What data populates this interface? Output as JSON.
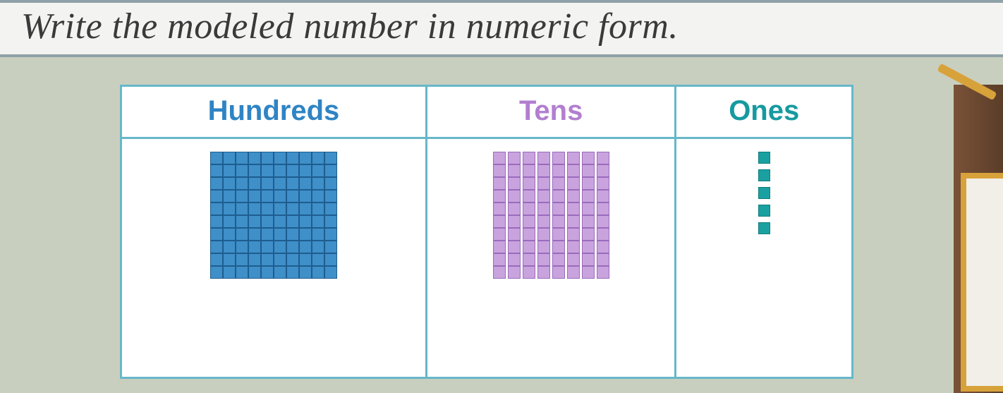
{
  "instruction": {
    "text": "Write the modeled number in numeric form.",
    "fontsize": 52
  },
  "table": {
    "border_color": "#67b7c9",
    "header_fontsize": 40,
    "columns": [
      {
        "key": "hundreds",
        "label": "Hundreds",
        "color": "#2f84c4"
      },
      {
        "key": "tens",
        "label": "Tens",
        "color": "#b27fcf"
      },
      {
        "key": "ones",
        "label": "Ones",
        "color": "#159aa0"
      }
    ]
  },
  "blocks": {
    "hundreds": {
      "count": 1,
      "grid": 10,
      "unit_size": 18,
      "fill": "#3f8fc9",
      "line": "#1e5d8f"
    },
    "tens": {
      "count": 8,
      "units": 10,
      "unit_w": 18,
      "unit_h": 18,
      "gap": 3,
      "fill": "#c9a3dd",
      "line": "#9a6bbd"
    },
    "ones": {
      "count": 5,
      "size": 17,
      "gap": 8,
      "fill": "#1aa0a0",
      "line": "#0e7d7d"
    }
  },
  "colors": {
    "page_bg": "#c9cfbf",
    "bar_bg": "#f3f4f2",
    "bar_border": "#8fa1a8",
    "text": "#3a3a3a"
  }
}
